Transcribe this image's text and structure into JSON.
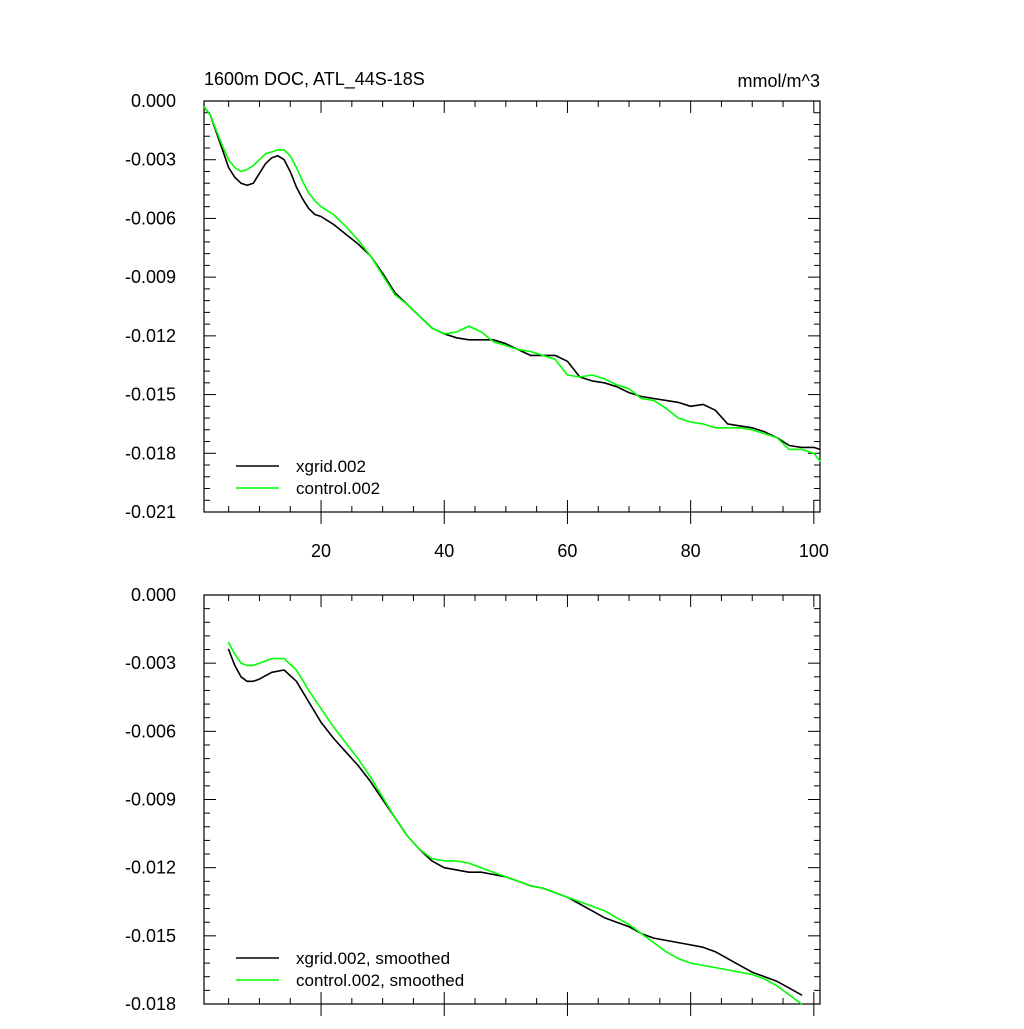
{
  "chart_data": [
    {
      "type": "line",
      "title": "1600m DOC, ATL_44S-18S",
      "units": "mmol/m^3",
      "xlabel": "",
      "ylabel": "",
      "xlim": [
        1,
        101
      ],
      "ylim": [
        -0.021,
        0.0
      ],
      "xticks": [
        20,
        40,
        60,
        80,
        100
      ],
      "xtick_labels": [
        "20",
        "40",
        "60",
        "80",
        "100"
      ],
      "yticks": [
        0.0,
        -0.003,
        -0.006,
        -0.009,
        -0.012,
        -0.015,
        -0.018,
        -0.021
      ],
      "ytick_labels": [
        "0.000",
        "-0.003",
        "-0.006",
        "-0.009",
        "-0.012",
        "-0.015",
        "-0.018",
        "-0.021"
      ],
      "legend_position": "bottom-left",
      "series": [
        {
          "name": "xgrid.002",
          "color": "#000000",
          "x": [
            1,
            2,
            3,
            4,
            5,
            6,
            7,
            8,
            9,
            10,
            11,
            12,
            13,
            14,
            15,
            16,
            17,
            18,
            19,
            20,
            22,
            24,
            26,
            28,
            30,
            32,
            34,
            36,
            38,
            40,
            42,
            44,
            46,
            48,
            50,
            52,
            54,
            56,
            58,
            60,
            62,
            64,
            66,
            68,
            70,
            72,
            74,
            76,
            78,
            80,
            82,
            84,
            86,
            88,
            90,
            92,
            94,
            96,
            98,
            100,
            101
          ],
          "values": [
            -0.0003,
            -0.0007,
            -0.0016,
            -0.0025,
            -0.0034,
            -0.0039,
            -0.0042,
            -0.0043,
            -0.0042,
            -0.0037,
            -0.0032,
            -0.0029,
            -0.0028,
            -0.003,
            -0.0036,
            -0.0044,
            -0.005,
            -0.0055,
            -0.0058,
            -0.0059,
            -0.0063,
            -0.0068,
            -0.0073,
            -0.0079,
            -0.0088,
            -0.0098,
            -0.0104,
            -0.011,
            -0.0116,
            -0.0119,
            -0.0121,
            -0.0122,
            -0.0122,
            -0.0122,
            -0.0124,
            -0.0127,
            -0.013,
            -0.013,
            -0.013,
            -0.0133,
            -0.0141,
            -0.0143,
            -0.0144,
            -0.0146,
            -0.0149,
            -0.0151,
            -0.0152,
            -0.0153,
            -0.0154,
            -0.0156,
            -0.0155,
            -0.0158,
            -0.0165,
            -0.0166,
            -0.0167,
            -0.0169,
            -0.0172,
            -0.0176,
            -0.0177,
            -0.0177,
            -0.0178
          ]
        },
        {
          "name": "control.002",
          "color": "#00ff00",
          "x": [
            1,
            2,
            3,
            4,
            5,
            6,
            7,
            8,
            9,
            10,
            11,
            12,
            13,
            14,
            15,
            16,
            17,
            18,
            19,
            20,
            22,
            24,
            26,
            28,
            30,
            32,
            34,
            36,
            38,
            40,
            42,
            44,
            46,
            48,
            50,
            52,
            54,
            56,
            58,
            60,
            62,
            64,
            66,
            68,
            70,
            72,
            74,
            76,
            78,
            80,
            82,
            84,
            86,
            88,
            90,
            92,
            94,
            96,
            98,
            100,
            101
          ],
          "values": [
            -0.0003,
            -0.0007,
            -0.0015,
            -0.0023,
            -0.003,
            -0.0034,
            -0.0036,
            -0.0035,
            -0.0033,
            -0.003,
            -0.0027,
            -0.0026,
            -0.0025,
            -0.0025,
            -0.0028,
            -0.0034,
            -0.0041,
            -0.0047,
            -0.0051,
            -0.0054,
            -0.0058,
            -0.0064,
            -0.0071,
            -0.0079,
            -0.0089,
            -0.0099,
            -0.0104,
            -0.011,
            -0.0116,
            -0.0119,
            -0.0118,
            -0.0115,
            -0.0118,
            -0.0123,
            -0.0125,
            -0.0127,
            -0.0128,
            -0.013,
            -0.0132,
            -0.014,
            -0.0141,
            -0.014,
            -0.0142,
            -0.0145,
            -0.0147,
            -0.0152,
            -0.0153,
            -0.0157,
            -0.0162,
            -0.0164,
            -0.0165,
            -0.0167,
            -0.0167,
            -0.0167,
            -0.0168,
            -0.017,
            -0.0172,
            -0.0178,
            -0.0178,
            -0.018,
            -0.0184
          ]
        }
      ]
    },
    {
      "type": "line",
      "title": "",
      "xlabel": "",
      "ylabel": "",
      "xlim": [
        1,
        101
      ],
      "ylim": [
        -0.018,
        0.0
      ],
      "xticks": [
        20,
        40,
        60,
        80,
        100
      ],
      "xtick_labels": [],
      "yticks": [
        0.0,
        -0.003,
        -0.006,
        -0.009,
        -0.012,
        -0.015,
        -0.018
      ],
      "ytick_labels": [
        "0.000",
        "-0.003",
        "-0.006",
        "-0.009",
        "-0.012",
        "-0.015",
        "-0.018"
      ],
      "legend_position": "bottom-left",
      "series": [
        {
          "name": "xgrid.002, smoothed",
          "color": "#000000",
          "x": [
            5,
            6,
            7,
            8,
            9,
            10,
            12,
            14,
            16,
            18,
            20,
            22,
            24,
            26,
            28,
            30,
            32,
            34,
            36,
            38,
            40,
            42,
            44,
            46,
            48,
            50,
            52,
            54,
            56,
            58,
            60,
            62,
            64,
            66,
            68,
            70,
            72,
            74,
            76,
            78,
            80,
            82,
            84,
            86,
            88,
            90,
            92,
            94,
            96,
            98
          ],
          "values": [
            -0.0024,
            -0.0031,
            -0.0036,
            -0.0038,
            -0.0038,
            -0.0037,
            -0.0034,
            -0.0033,
            -0.0038,
            -0.0047,
            -0.0056,
            -0.0063,
            -0.0069,
            -0.0075,
            -0.0082,
            -0.009,
            -0.0098,
            -0.0106,
            -0.0112,
            -0.0117,
            -0.012,
            -0.0121,
            -0.0122,
            -0.0122,
            -0.0123,
            -0.0124,
            -0.0126,
            -0.0128,
            -0.0129,
            -0.0131,
            -0.0133,
            -0.0136,
            -0.0139,
            -0.0142,
            -0.0144,
            -0.0146,
            -0.0149,
            -0.0151,
            -0.0152,
            -0.0153,
            -0.0154,
            -0.0155,
            -0.0157,
            -0.016,
            -0.0163,
            -0.0166,
            -0.0168,
            -0.017,
            -0.0173,
            -0.0176
          ]
        },
        {
          "name": "control.002, smoothed",
          "color": "#00ff00",
          "x": [
            5,
            6,
            7,
            8,
            9,
            10,
            12,
            14,
            16,
            18,
            20,
            22,
            24,
            26,
            28,
            30,
            32,
            34,
            36,
            38,
            40,
            42,
            44,
            46,
            48,
            50,
            52,
            54,
            56,
            58,
            60,
            62,
            64,
            66,
            68,
            70,
            72,
            74,
            76,
            78,
            80,
            82,
            84,
            86,
            88,
            90,
            92,
            94,
            96,
            98
          ],
          "values": [
            -0.0021,
            -0.0026,
            -0.003,
            -0.0031,
            -0.0031,
            -0.003,
            -0.0028,
            -0.0028,
            -0.0033,
            -0.0042,
            -0.005,
            -0.0058,
            -0.0065,
            -0.0072,
            -0.008,
            -0.0089,
            -0.0098,
            -0.0106,
            -0.0112,
            -0.0116,
            -0.0117,
            -0.0117,
            -0.0118,
            -0.012,
            -0.0122,
            -0.0124,
            -0.0126,
            -0.0128,
            -0.0129,
            -0.0131,
            -0.0133,
            -0.0135,
            -0.0137,
            -0.0139,
            -0.0142,
            -0.0145,
            -0.0149,
            -0.0153,
            -0.0157,
            -0.016,
            -0.0162,
            -0.0163,
            -0.0164,
            -0.0165,
            -0.0166,
            -0.0167,
            -0.0169,
            -0.0172,
            -0.0176,
            -0.018
          ]
        }
      ]
    }
  ]
}
